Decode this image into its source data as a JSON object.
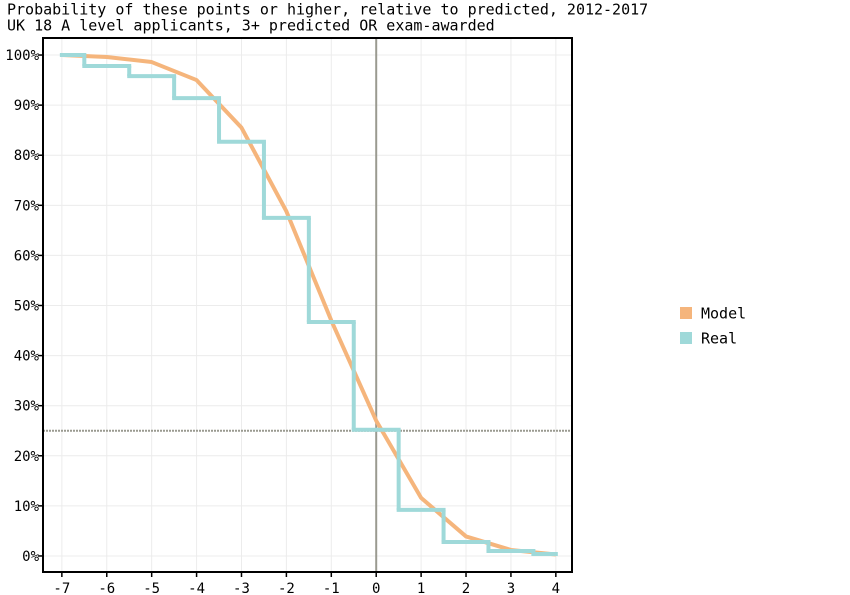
{
  "chart_data": {
    "type": "line",
    "title": "Probability of these points or higher, relative to predicted, 2012-2017",
    "subtitle": "UK 18 A level applicants, 3+ predicted OR exam-awarded",
    "x": [
      -7,
      -6,
      -5,
      -4,
      -3,
      -2,
      -1,
      0,
      1,
      2,
      3,
      4
    ],
    "series": [
      {
        "name": "Model",
        "color": "#f5b57c",
        "style": "line",
        "values": [
          100,
          99.6,
          98.6,
          95,
          85.5,
          68.8,
          47,
          27,
          11.6,
          3.9,
          1.2,
          0.3
        ]
      },
      {
        "name": "Real",
        "color": "#9fd9d9",
        "style": "step",
        "values": [
          100,
          97.8,
          95.8,
          91.4,
          82.7,
          67.5,
          46.7,
          25.2,
          9.2,
          2.8,
          1.0,
          0.4
        ]
      }
    ],
    "xlim": [
      -7.42,
      4.36
    ],
    "ylim": [
      -3.2,
      103.4
    ],
    "xticks": [
      -7,
      -6,
      -5,
      -4,
      -3,
      -2,
      -1,
      0,
      1,
      2,
      3,
      4
    ],
    "yticks": [
      {
        "value": 0,
        "label": "0%"
      },
      {
        "value": 10,
        "label": "10%"
      },
      {
        "value": 20,
        "label": "20%"
      },
      {
        "value": 30,
        "label": "30%"
      },
      {
        "value": 40,
        "label": "40%"
      },
      {
        "value": 50,
        "label": "50%"
      },
      {
        "value": 60,
        "label": "60%"
      },
      {
        "value": 70,
        "label": "70%"
      },
      {
        "value": 80,
        "label": "80%"
      },
      {
        "value": 90,
        "label": "90%"
      },
      {
        "value": 100,
        "label": "100%"
      }
    ],
    "reference_lines": {
      "x": 0,
      "y": 25
    },
    "grid": true,
    "legend": "right"
  }
}
